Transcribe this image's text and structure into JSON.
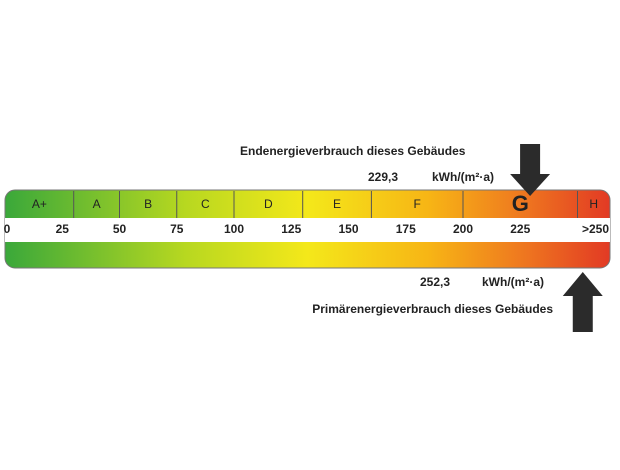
{
  "scale": {
    "min": 0,
    "max": 250,
    "ticks": [
      0,
      25,
      50,
      75,
      100,
      125,
      150,
      175,
      200,
      225,
      {
        "value": 250,
        "label": ">250"
      }
    ],
    "classes": [
      {
        "label": "A+",
        "upper": 30
      },
      {
        "label": "A",
        "upper": 50
      },
      {
        "label": "B",
        "upper": 75
      },
      {
        "label": "C",
        "upper": 100
      },
      {
        "label": "D",
        "upper": 130
      },
      {
        "label": "E",
        "upper": 160
      },
      {
        "label": "F",
        "upper": 200
      },
      {
        "label": "G",
        "upper": 250
      },
      {
        "label": "H"
      }
    ],
    "highlight_class": "G"
  },
  "end_energy": {
    "label": "Endenergieverbrauch dieses Gebäudes",
    "value": 229.3,
    "value_label": "229,3",
    "unit": "kWh/(m²·a)"
  },
  "primary_energy": {
    "label": "Primärenergieverbrauch dieses Gebäudes",
    "value": 252.3,
    "value_label": "252,3",
    "unit": "kWh/(m²·a)"
  }
}
